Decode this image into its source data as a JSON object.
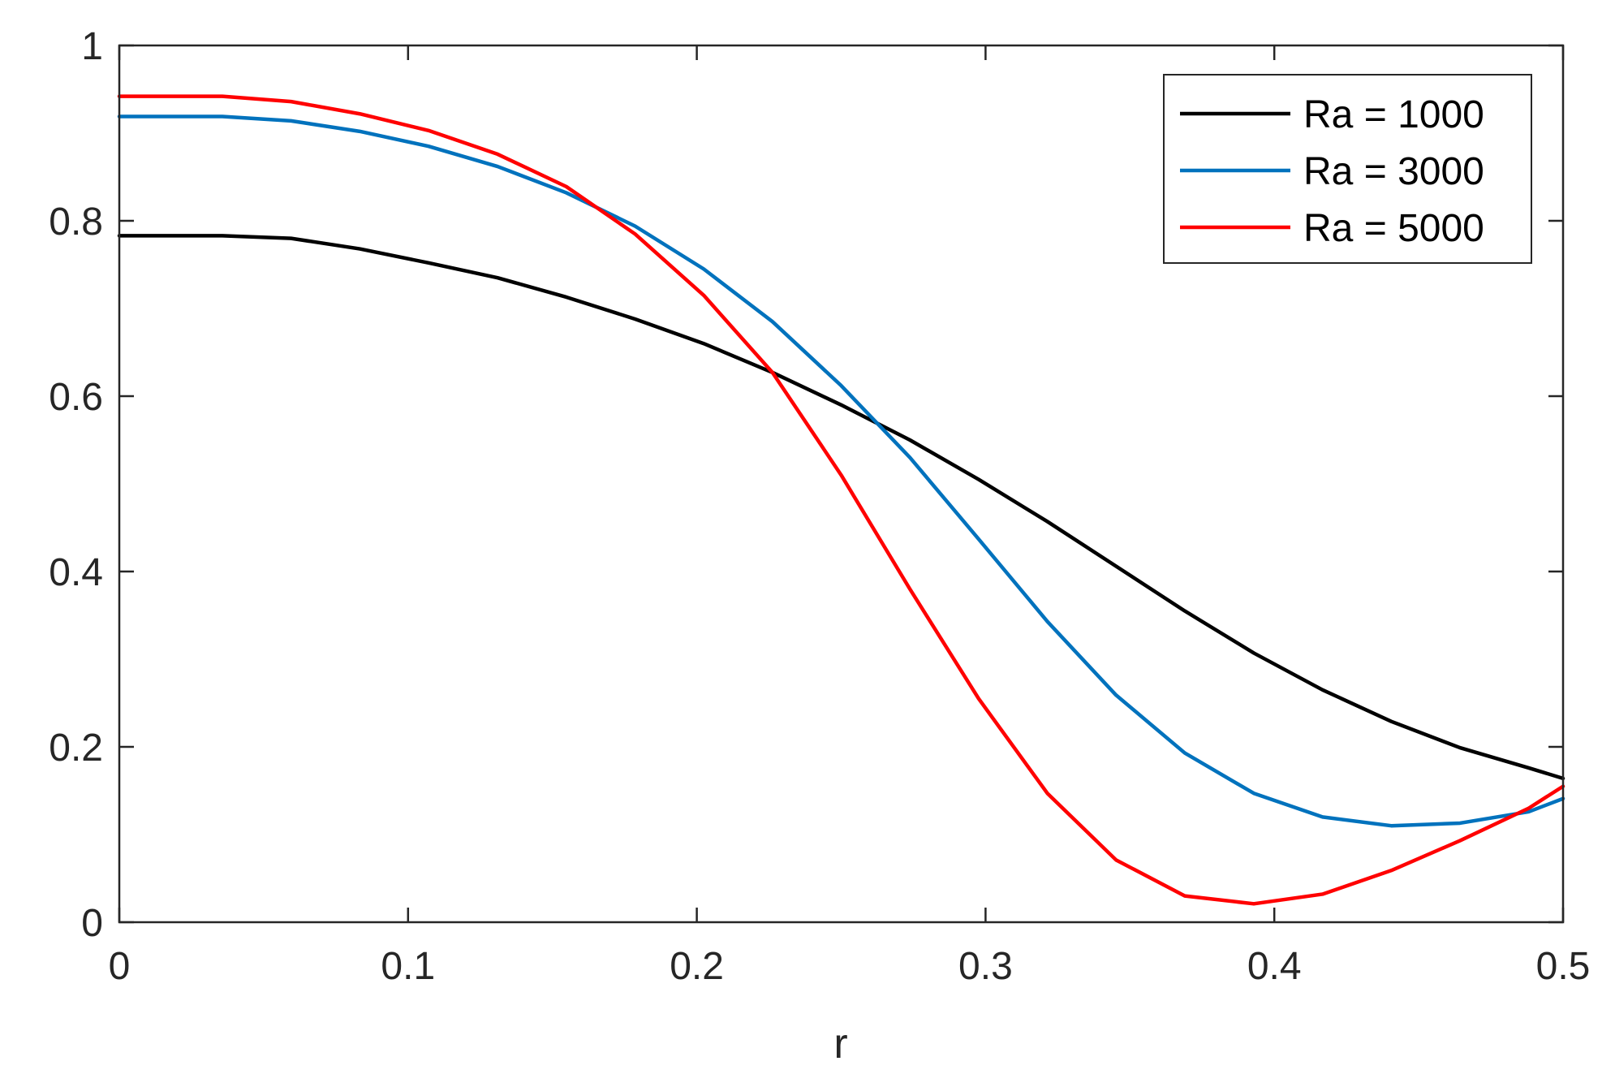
{
  "chart_data": {
    "type": "line",
    "title": "",
    "xlabel": "r",
    "ylabel": "",
    "xlim": [
      0,
      0.5
    ],
    "ylim": [
      0,
      1
    ],
    "xticks": [
      0,
      0.1,
      0.2,
      0.3,
      0.4,
      0.5
    ],
    "xtick_labels": [
      "0",
      "0.1",
      "0.2",
      "0.3",
      "0.4",
      "0.5"
    ],
    "yticks": [
      0,
      0.2,
      0.4,
      0.6,
      0.8,
      1
    ],
    "ytick_labels": [
      "0",
      "0.2",
      "0.4",
      "0.6",
      "0.8",
      "1"
    ],
    "grid": false,
    "box": true,
    "legend_position": "top-right",
    "x": [
      0,
      0.0357,
      0.0595,
      0.0833,
      0.1071,
      0.131,
      0.1548,
      0.1786,
      0.2024,
      0.2262,
      0.25,
      0.2738,
      0.2976,
      0.3214,
      0.3452,
      0.369,
      0.3929,
      0.4167,
      0.4405,
      0.4643,
      0.4881,
      0.5
    ],
    "series": [
      {
        "name": "Ra = 1000",
        "color": "#000000",
        "values": [
          0.783,
          0.783,
          0.78,
          0.768,
          0.752,
          0.735,
          0.713,
          0.688,
          0.66,
          0.627,
          0.59,
          0.55,
          0.505,
          0.457,
          0.406,
          0.355,
          0.307,
          0.265,
          0.229,
          0.199,
          0.176,
          0.164
        ]
      },
      {
        "name": "Ra = 3000",
        "color": "#0072BD",
        "values": [
          0.919,
          0.919,
          0.914,
          0.902,
          0.885,
          0.862,
          0.832,
          0.794,
          0.745,
          0.685,
          0.612,
          0.53,
          0.437,
          0.343,
          0.259,
          0.193,
          0.147,
          0.12,
          0.11,
          0.113,
          0.126,
          0.141
        ]
      },
      {
        "name": "Ra = 5000",
        "color": "#FF0000",
        "values": [
          0.942,
          0.942,
          0.936,
          0.922,
          0.903,
          0.876,
          0.839,
          0.785,
          0.715,
          0.627,
          0.51,
          0.38,
          0.255,
          0.147,
          0.071,
          0.03,
          0.021,
          0.032,
          0.059,
          0.093,
          0.13,
          0.155
        ]
      }
    ]
  }
}
